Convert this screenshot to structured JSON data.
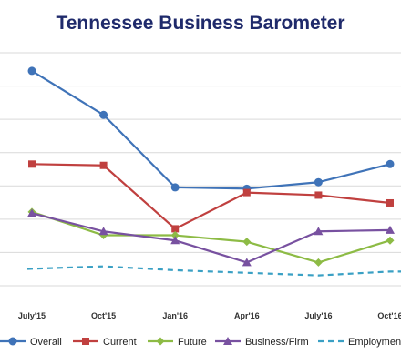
{
  "chart_data": {
    "type": "line",
    "title": "Tennessee Business Barometer",
    "categories": [
      "July'15",
      "Oct'15",
      "Jan'16",
      "Apr'16",
      "July'16",
      "Oct'16"
    ],
    "ylim": [
      0,
      9
    ],
    "grid": true,
    "legend_placement": "bottom",
    "series": [
      {
        "name": "Overall",
        "color": "#3f73b8",
        "marker": "circle",
        "dash": false,
        "values": [
          8.3,
          6.6,
          3.8,
          3.75,
          4.0,
          4.7
        ]
      },
      {
        "name": "Current",
        "color": "#c0403f",
        "marker": "square",
        "dash": false,
        "values": [
          4.7,
          4.65,
          2.2,
          3.6,
          3.5,
          3.2
        ]
      },
      {
        "name": "Future",
        "color": "#8dbb45",
        "marker": "diamond",
        "dash": false,
        "values": [
          2.85,
          1.95,
          1.95,
          1.7,
          0.9,
          1.75
        ]
      },
      {
        "name": "Business/Firm",
        "color": "#7851a0",
        "marker": "triangle",
        "dash": false,
        "values": [
          2.8,
          2.1,
          1.75,
          0.9,
          2.1,
          2.15
        ]
      },
      {
        "name": "Employment",
        "color": "#3aa0c4",
        "marker": "none",
        "dash": true,
        "values": [
          0.65,
          0.75,
          0.6,
          0.5,
          0.4,
          0.55
        ]
      }
    ]
  }
}
